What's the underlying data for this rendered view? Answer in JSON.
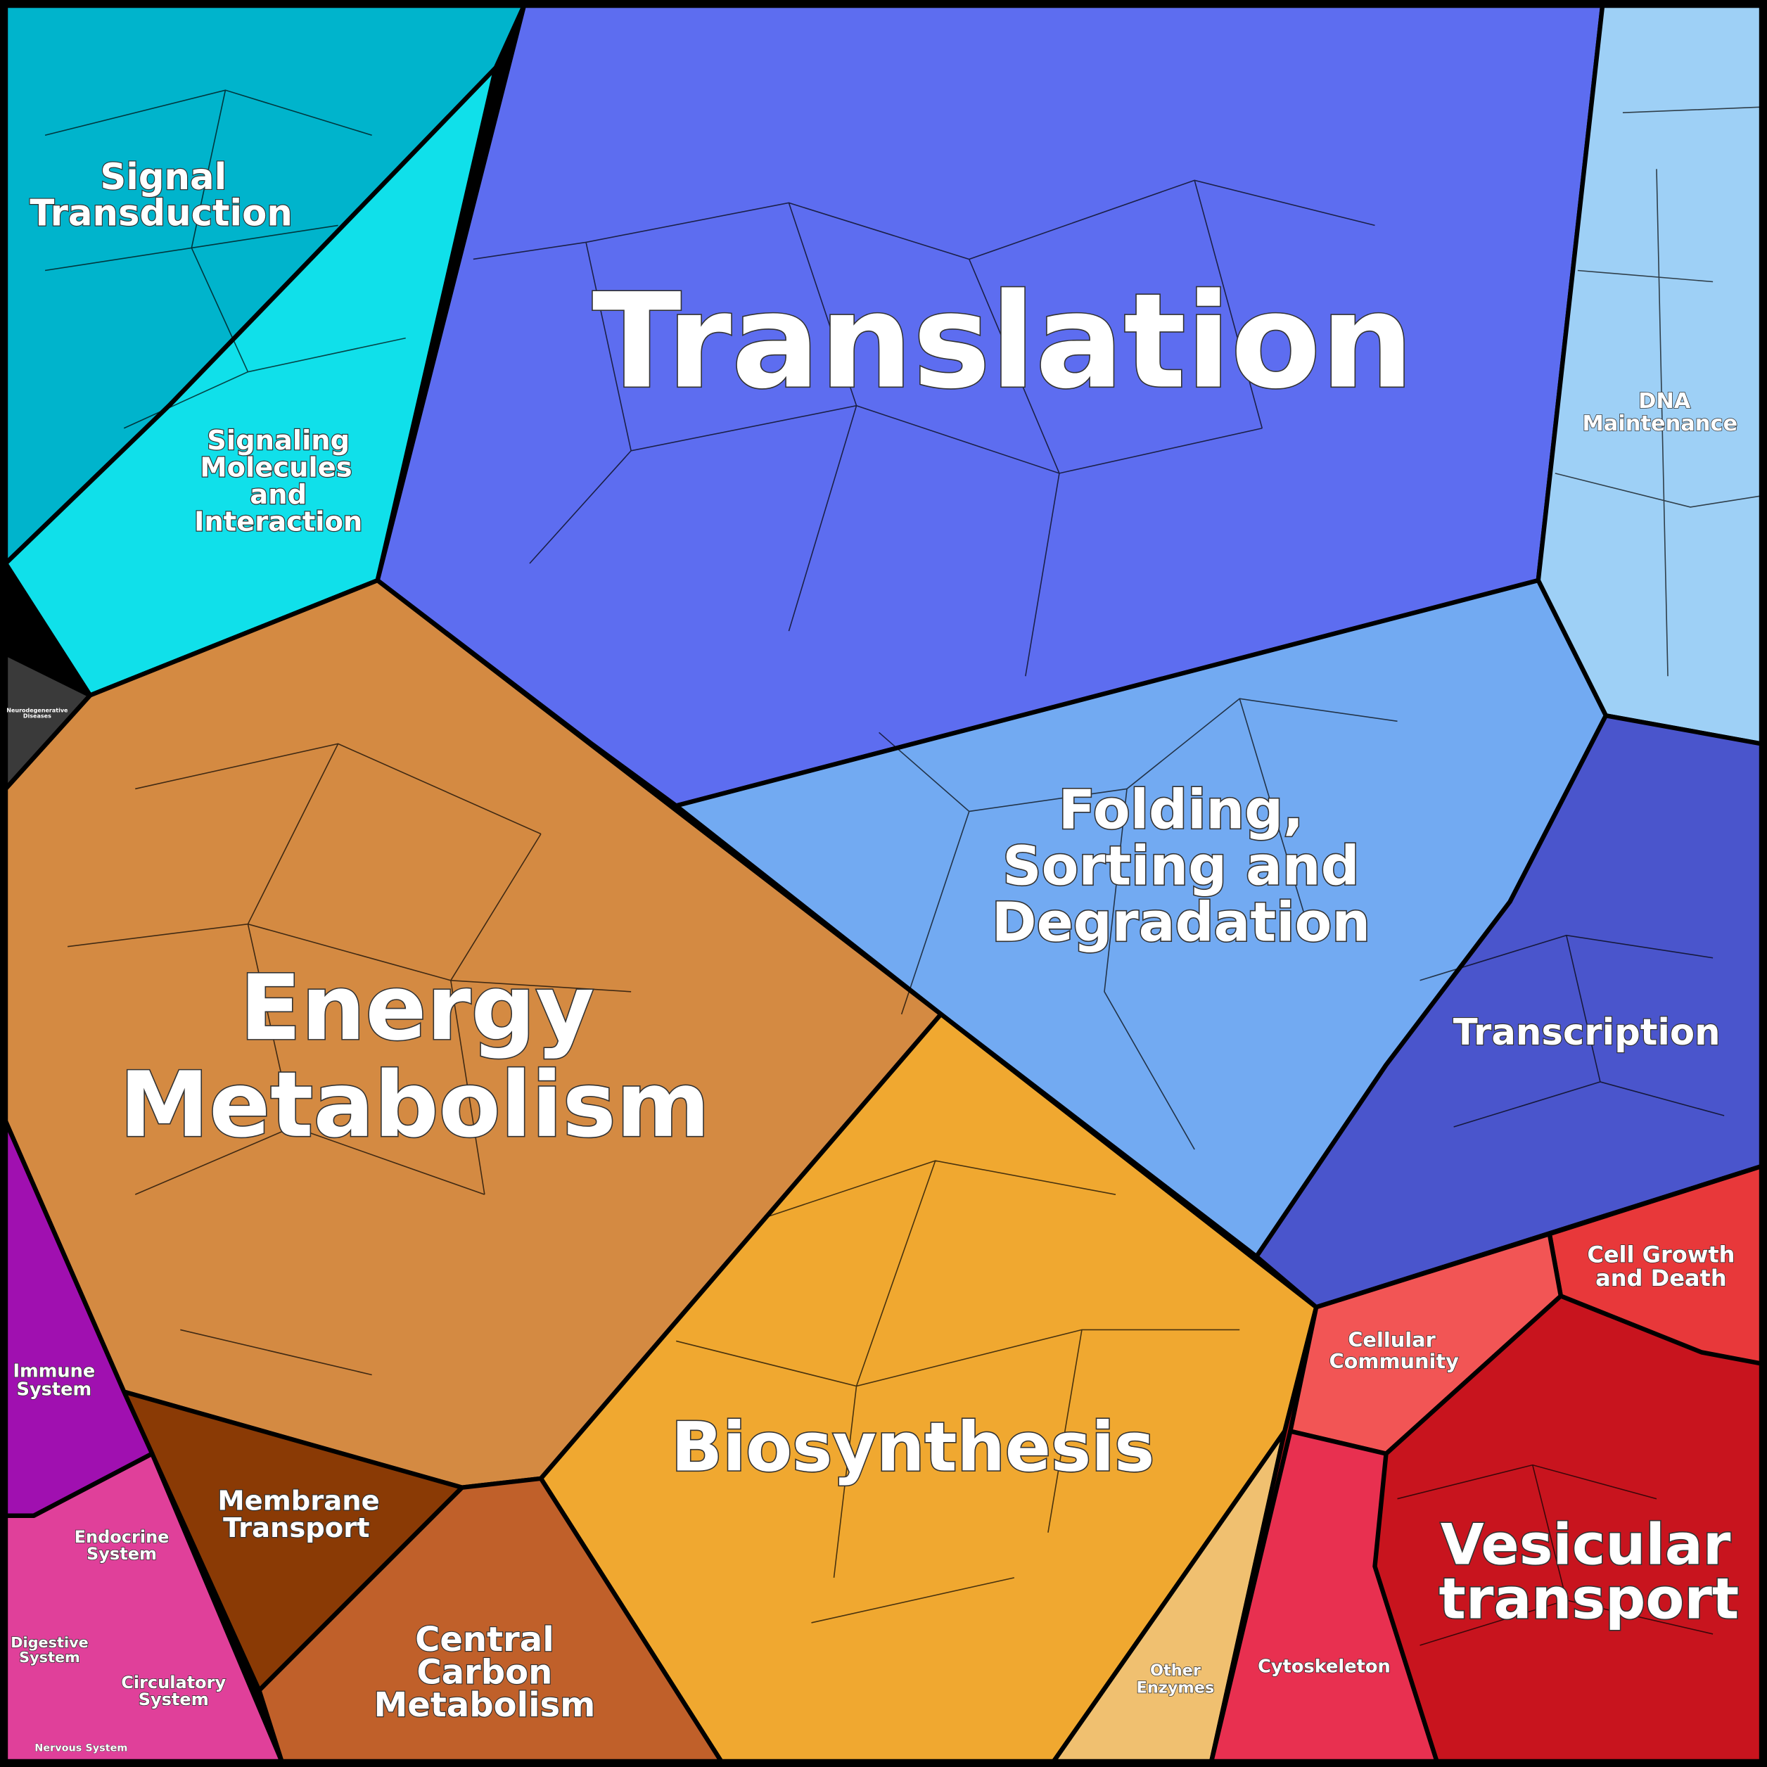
{
  "regions": [
    {
      "lines": [
        "Translation"
      ]
    },
    {
      "lines": [
        "Energy",
        "Metabolism"
      ]
    },
    {
      "lines": [
        "Biosynthesis"
      ]
    },
    {
      "lines": [
        "Folding,",
        "Sorting and",
        "Degradation"
      ]
    },
    {
      "lines": [
        "Vesicular",
        "transport"
      ]
    },
    {
      "lines": [
        "Signal",
        "Transduction"
      ]
    },
    {
      "lines": [
        "Signaling",
        "Molecules",
        "and",
        "Interaction"
      ]
    },
    {
      "lines": [
        "Transcription"
      ]
    },
    {
      "lines": [
        "DNA",
        "Maintenance"
      ]
    },
    {
      "lines": [
        "Membrane",
        "Transport"
      ]
    },
    {
      "lines": [
        "Central",
        "Carbon",
        "Metabolism"
      ]
    },
    {
      "lines": [
        "Cell Growth",
        "and Death"
      ]
    },
    {
      "lines": [
        "Cellular",
        "Community"
      ]
    },
    {
      "lines": [
        "Cytoskeleton"
      ]
    },
    {
      "lines": [
        "Other",
        "Enzymes"
      ]
    },
    {
      "lines": [
        "Immune",
        "System"
      ]
    },
    {
      "lines": [
        "Endocrine",
        "System"
      ]
    },
    {
      "lines": [
        "Digestive",
        "System"
      ]
    },
    {
      "lines": [
        "Circulatory",
        "System"
      ]
    },
    {
      "lines": [
        "Nervous System"
      ]
    },
    {
      "lines": [
        "Neurodegenerative",
        "Diseases"
      ]
    }
  ]
}
